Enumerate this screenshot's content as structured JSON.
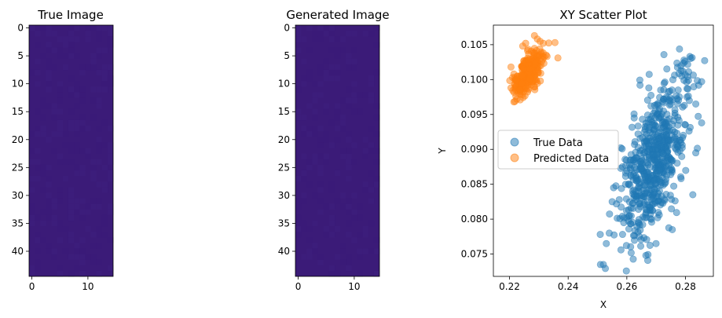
{
  "colors": {
    "true_series": "#1f77b4",
    "pred_series": "#ff7f0e",
    "image_fill": "#3b1b78",
    "image_fill_alt": "#3a1a77"
  },
  "chart_data": [
    {
      "type": "heatmap",
      "title": "True Image",
      "rows": 45,
      "cols": 15,
      "value_description": "near-uniform dark purple field",
      "x_ticks": [
        "0",
        "10"
      ],
      "y_ticks": [
        "0",
        "5",
        "10",
        "15",
        "20",
        "25",
        "30",
        "35",
        "40"
      ]
    },
    {
      "type": "heatmap",
      "title": "Generated Image",
      "rows": 45,
      "cols": 15,
      "value_description": "near-uniform dark purple field",
      "x_ticks": [
        "0",
        "10"
      ],
      "y_ticks": [
        "0",
        "5",
        "10",
        "15",
        "20",
        "25",
        "30",
        "35",
        "40"
      ]
    },
    {
      "type": "scatter",
      "title": "XY Scatter Plot",
      "xlabel": "X",
      "ylabel": "Y",
      "xlim": [
        0.2145,
        0.2895
      ],
      "ylim": [
        0.0718,
        0.1078
      ],
      "x_ticks": [
        "0.22",
        "0.24",
        "0.26",
        "0.28"
      ],
      "x_tick_values": [
        0.22,
        0.24,
        0.26,
        0.28
      ],
      "y_ticks": [
        "0.075",
        "0.080",
        "0.085",
        "0.090",
        "0.095",
        "0.100",
        "0.105"
      ],
      "y_tick_values": [
        0.075,
        0.08,
        0.085,
        0.09,
        0.095,
        0.1,
        0.105
      ],
      "legend_position": "center-left",
      "series": [
        {
          "name": "True Data",
          "color": "#1f77b4",
          "distribution": {
            "count": 600,
            "x_mean": 0.2695,
            "y_mean": 0.0885,
            "x_sd": 0.0058,
            "y_sd": 0.0058,
            "correlation": 0.62
          },
          "points": [
            [
              0.251,
              0.0735
            ],
            [
              0.252,
              0.0735
            ],
            [
              0.2665,
              0.0748
            ],
            [
              0.253,
              0.0765
            ],
            [
              0.258,
              0.0756
            ],
            [
              0.254,
              0.078
            ],
            [
              0.2755,
              0.0785
            ],
            [
              0.2655,
              0.0803
            ],
            [
              0.2705,
              0.0802
            ],
            [
              0.2555,
              0.0845
            ],
            [
              0.255,
              0.0825
            ],
            [
              0.2585,
              0.0875
            ],
            [
              0.2645,
              0.0992
            ],
            [
              0.2795,
              0.1028
            ],
            [
              0.2815,
              0.1033
            ],
            [
              0.2855,
              0.0997
            ],
            [
              0.2845,
              0.0992
            ],
            [
              0.2835,
              0.0965
            ],
            [
              0.2855,
              0.0938
            ],
            [
              0.2835,
              0.0895
            ],
            [
              0.2825,
              0.0835
            ],
            [
              0.2785,
              0.0858
            ],
            [
              0.2625,
              0.0945
            ],
            [
              0.2695,
              0.0963
            ],
            [
              0.2735,
              0.0975
            ],
            [
              0.2785,
              0.1013
            ],
            [
              0.2775,
              0.0985
            ],
            [
              0.2805,
              0.0975
            ],
            [
              0.2725,
              0.0955
            ],
            [
              0.2675,
              0.0905
            ]
          ]
        },
        {
          "name": "Predicted Data",
          "color": "#ff7f0e",
          "distribution": {
            "count": 300,
            "x_mean": 0.2265,
            "y_mean": 0.101,
            "x_sd": 0.0022,
            "y_sd": 0.0016,
            "correlation": 0.6
          },
          "points": [
            [
              0.2205,
              0.0988
            ],
            [
              0.2215,
              0.0968
            ],
            [
              0.2225,
              0.0972
            ],
            [
              0.2285,
              0.1063
            ],
            [
              0.2295,
              0.1058
            ],
            [
              0.2315,
              0.1052
            ],
            [
              0.2355,
              0.1053
            ],
            [
              0.2365,
              0.1031
            ],
            [
              0.2255,
              0.1052
            ],
            [
              0.2245,
              0.1048
            ],
            [
              0.2215,
              0.1008
            ],
            [
              0.2205,
              0.1018
            ],
            [
              0.2325,
              0.1035
            ],
            [
              0.2305,
              0.0998
            ],
            [
              0.2235,
              0.0985
            ]
          ]
        }
      ]
    }
  ]
}
